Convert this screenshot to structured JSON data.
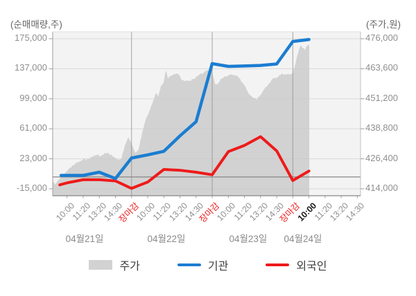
{
  "chart_data": {
    "type": "area+line",
    "description_visible_text_only": "intraday stock chart, gray price area on right axis, two net-volume lines on left axis",
    "left_axis": {
      "title": "(순매매량,주)",
      "ticks": [
        175000,
        137000,
        99000,
        61000,
        23000,
        -15000
      ],
      "tick_labels": [
        "175,000",
        "137,000",
        "99,000",
        "61,000",
        "23,000",
        "-15,000"
      ],
      "min": -15000,
      "max": 175000,
      "zero_line": 0
    },
    "right_axis": {
      "title": "(주가,원)",
      "ticks": [
        476000,
        463600,
        451200,
        438800,
        426400,
        414000
      ],
      "tick_labels": [
        "476,000",
        "463,600",
        "451,200",
        "438,800",
        "426,400",
        "414,000"
      ],
      "min": 414000,
      "max": 476000
    },
    "x_ticks": [
      {
        "label": "10:00",
        "type": "time"
      },
      {
        "label": "11:20",
        "type": "time"
      },
      {
        "label": "13:20",
        "type": "time"
      },
      {
        "label": "14:30",
        "type": "time"
      },
      {
        "label": "장마감",
        "type": "close"
      },
      {
        "label": "10:00",
        "type": "time"
      },
      {
        "label": "11:20",
        "type": "time"
      },
      {
        "label": "13:20",
        "type": "time"
      },
      {
        "label": "14:30",
        "type": "time"
      },
      {
        "label": "장마감",
        "type": "close"
      },
      {
        "label": "10:00",
        "type": "time"
      },
      {
        "label": "11:20",
        "type": "time"
      },
      {
        "label": "13:20",
        "type": "time"
      },
      {
        "label": "14:30",
        "type": "time"
      },
      {
        "label": "장마감",
        "type": "close"
      },
      {
        "label": "10:00",
        "type": "current"
      },
      {
        "label": "11:20",
        "type": "time"
      },
      {
        "label": "13:20",
        "type": "time"
      },
      {
        "label": "14:30",
        "type": "time"
      }
    ],
    "day_labels": [
      {
        "label": "04월21일",
        "center_idx": 1.09
      },
      {
        "label": "04월22일",
        "center_idx": 6.16
      },
      {
        "label": "04월23일",
        "center_idx": 11.23
      },
      {
        "label": "04월24일",
        "center_idx": 14.63
      }
    ],
    "vertical_gridline_ticks": [
      4,
      9,
      14
    ],
    "series": [
      {
        "name": "주가",
        "type": "area",
        "axis": "right",
        "color": "#d2d2d2",
        "points": [
          [
            -0.89,
            417000
          ],
          [
            -0.72,
            415800
          ],
          [
            -0.5,
            418000
          ],
          [
            -0.29,
            419500
          ],
          [
            -0.07,
            421000
          ],
          [
            0.14,
            422500
          ],
          [
            0.36,
            423500
          ],
          [
            0.57,
            424500
          ],
          [
            0.79,
            425500
          ],
          [
            1.0,
            426300
          ],
          [
            1.22,
            425900
          ],
          [
            1.43,
            427000
          ],
          [
            1.65,
            427500
          ],
          [
            1.86,
            428200
          ],
          [
            2.08,
            427300
          ],
          [
            2.29,
            428500
          ],
          [
            2.51,
            429000
          ],
          [
            2.72,
            428000
          ],
          [
            2.94,
            427000
          ],
          [
            3.15,
            425800
          ],
          [
            3.37,
            426500
          ],
          [
            3.58,
            431500
          ],
          [
            3.8,
            435500
          ],
          [
            4.01,
            432500
          ],
          [
            4.23,
            428700
          ],
          [
            4.44,
            430500
          ],
          [
            4.66,
            437000
          ],
          [
            4.87,
            442500
          ],
          [
            5.09,
            445500
          ],
          [
            5.3,
            449500
          ],
          [
            5.52,
            453500
          ],
          [
            5.65,
            452000
          ],
          [
            5.82,
            456500
          ],
          [
            5.99,
            458000
          ],
          [
            6.12,
            463000
          ],
          [
            6.25,
            459800
          ],
          [
            6.42,
            460500
          ],
          [
            6.59,
            461000
          ],
          [
            6.76,
            461500
          ],
          [
            6.93,
            461300
          ],
          [
            7.11,
            459000
          ],
          [
            7.28,
            458500
          ],
          [
            7.45,
            458700
          ],
          [
            7.62,
            458300
          ],
          [
            7.8,
            459500
          ],
          [
            7.97,
            459800
          ],
          [
            8.14,
            461000
          ],
          [
            8.31,
            461500
          ],
          [
            8.48,
            462000
          ],
          [
            8.65,
            463000
          ],
          [
            8.83,
            462400
          ],
          [
            9.0,
            462500
          ],
          [
            9.17,
            457300
          ],
          [
            9.34,
            457000
          ],
          [
            9.51,
            459000
          ],
          [
            9.69,
            459700
          ],
          [
            9.86,
            460500
          ],
          [
            10.03,
            461000
          ],
          [
            10.2,
            461500
          ],
          [
            10.37,
            461000
          ],
          [
            10.55,
            460500
          ],
          [
            10.72,
            459500
          ],
          [
            10.89,
            457500
          ],
          [
            11.06,
            456000
          ],
          [
            11.23,
            453500
          ],
          [
            11.41,
            452500
          ],
          [
            11.58,
            451500
          ],
          [
            11.75,
            451000
          ],
          [
            11.92,
            452200
          ],
          [
            12.09,
            453500
          ],
          [
            12.27,
            455500
          ],
          [
            12.44,
            457000
          ],
          [
            12.61,
            458200
          ],
          [
            12.78,
            459500
          ],
          [
            12.95,
            460000
          ],
          [
            13.13,
            460500
          ],
          [
            13.3,
            461500
          ],
          [
            13.47,
            461000
          ],
          [
            13.64,
            461200
          ],
          [
            13.81,
            461500
          ],
          [
            13.99,
            461300
          ],
          [
            14.12,
            464500
          ],
          [
            14.25,
            468500
          ],
          [
            14.38,
            471500
          ],
          [
            14.51,
            473400
          ],
          [
            14.63,
            472200
          ],
          [
            14.76,
            471300
          ],
          [
            14.89,
            473400
          ],
          [
            15.02,
            473500
          ]
        ]
      },
      {
        "name": "기관",
        "type": "line",
        "axis": "left",
        "color": "#1b7dd1",
        "points": [
          [
            -0.37,
            2000
          ],
          [
            0,
            2000
          ],
          [
            1,
            2000
          ],
          [
            2,
            6000
          ],
          [
            3,
            -2000
          ],
          [
            4,
            24000
          ],
          [
            5,
            28000
          ],
          [
            6,
            32500
          ],
          [
            7,
            52000
          ],
          [
            8,
            70000
          ],
          [
            9,
            143500
          ],
          [
            10,
            140000
          ],
          [
            11,
            140500
          ],
          [
            12,
            141200
          ],
          [
            13,
            143000
          ],
          [
            14,
            171500
          ],
          [
            15,
            174000
          ]
        ]
      },
      {
        "name": "외국인",
        "type": "line",
        "axis": "left",
        "color": "#ee1a1a",
        "points": [
          [
            -0.45,
            -10000
          ],
          [
            0,
            -7500
          ],
          [
            1,
            -3500
          ],
          [
            2,
            -3500
          ],
          [
            3,
            -5000
          ],
          [
            4,
            -14500
          ],
          [
            5,
            -6500
          ],
          [
            6,
            9500
          ],
          [
            7,
            8500
          ],
          [
            8,
            6000
          ],
          [
            9,
            2800
          ],
          [
            10,
            32000
          ],
          [
            11,
            40000
          ],
          [
            12,
            51000
          ],
          [
            13,
            33000
          ],
          [
            14,
            -4500
          ],
          [
            15,
            7500
          ]
        ]
      }
    ],
    "colors": {
      "plot_bg": "#f3f3f3",
      "h_grid": "#c9c9c9",
      "v_grid": "#8f8f8f",
      "zero_line": "#868686",
      "axis": "#9c9c9c",
      "border_right": "#c2c2c2",
      "border_top": "#dcdcdc",
      "tick_text": "#8f8f8f",
      "close_label": "#ee2222",
      "current_label": "#1a1a1a",
      "date_text": "#8a8a8a"
    },
    "legend_position": "bottom-center",
    "grid": true
  },
  "legend": {
    "items": [
      {
        "label": "주가",
        "swatch": "area",
        "color": "#d2d2d2"
      },
      {
        "label": "기관",
        "swatch": "line",
        "color": "#1b7dd1"
      },
      {
        "label": "외국인",
        "swatch": "line",
        "color": "#ee1a1a"
      }
    ]
  }
}
